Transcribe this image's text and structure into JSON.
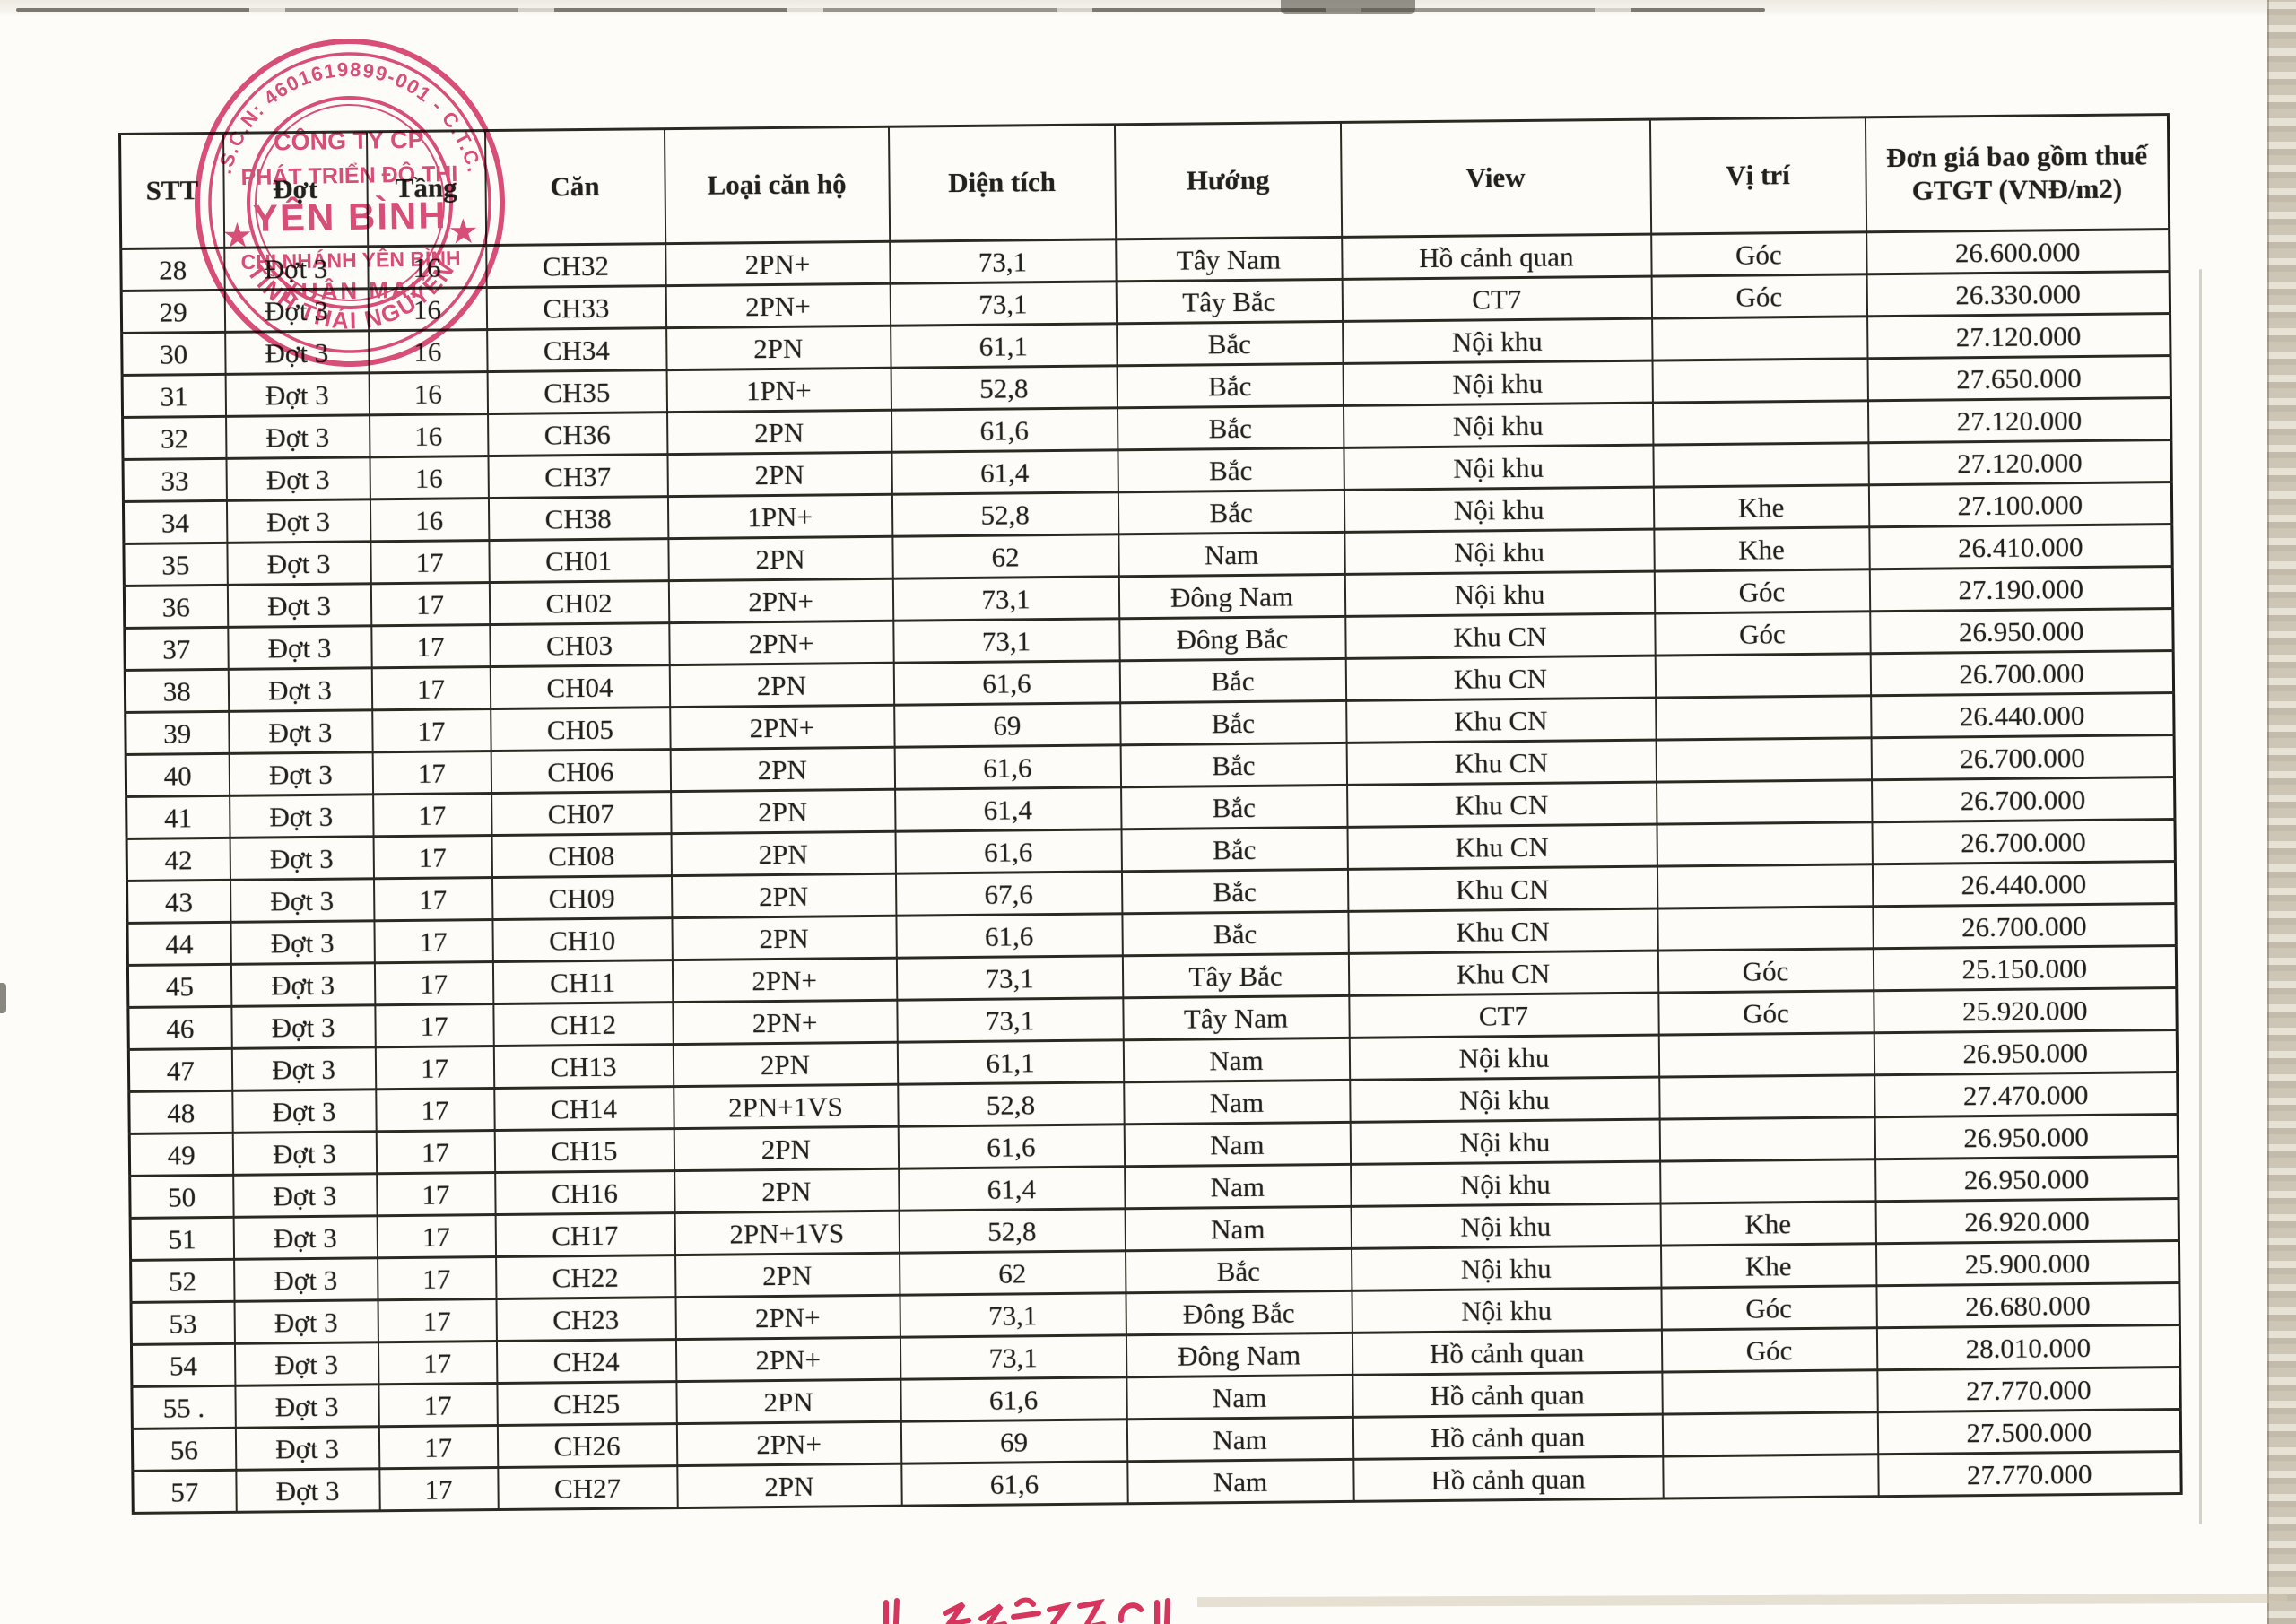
{
  "stamp": {
    "ring_text_top": "M.S.C.N: 4601619899-001 - C.T.C.P",
    "ring_text_bottom": "TỈNH THÁI NGUYÊN",
    "line1": "CÔNG TY CP",
    "line2": "PHÁT TRIỂN ĐÔ THỊ",
    "line3": "YÊN BÌNH",
    "line4": "CHI NHÁNH YÊN BÌNH",
    "line5": "XUÂN MAI",
    "star": "★",
    "color": "#d6416d"
  },
  "table": {
    "field_names": [
      "stt",
      "dot",
      "tang",
      "can",
      "loai-can-ho",
      "dien-tich",
      "huong",
      "view",
      "vi-tri",
      "don-gia"
    ],
    "headers": [
      "STT",
      "Đợt",
      "Tầng",
      "Căn",
      "Loại căn hộ",
      "Diện tích",
      "Hướng",
      "View",
      "Vị trí",
      "Đơn giá bao gồm thuế GTGT (VNĐ/m2)"
    ],
    "rows": [
      [
        "28",
        "Đợt 3",
        "16",
        "CH32",
        "2PN+",
        "73,1",
        "Tây Nam",
        "Hồ cảnh quan",
        "Góc",
        "26.600.000"
      ],
      [
        "29",
        "Đợt 3",
        "16",
        "CH33",
        "2PN+",
        "73,1",
        "Tây Bắc",
        "CT7",
        "Góc",
        "26.330.000"
      ],
      [
        "30",
        "Đợt 3",
        "16",
        "CH34",
        "2PN",
        "61,1",
        "Bắc",
        "Nội khu",
        "",
        "27.120.000"
      ],
      [
        "31",
        "Đợt 3",
        "16",
        "CH35",
        "1PN+",
        "52,8",
        "Bắc",
        "Nội khu",
        "",
        "27.650.000"
      ],
      [
        "32",
        "Đợt 3",
        "16",
        "CH36",
        "2PN",
        "61,6",
        "Bắc",
        "Nội khu",
        "",
        "27.120.000"
      ],
      [
        "33",
        "Đợt 3",
        "16",
        "CH37",
        "2PN",
        "61,4",
        "Bắc",
        "Nội khu",
        "",
        "27.120.000"
      ],
      [
        "34",
        "Đợt 3",
        "16",
        "CH38",
        "1PN+",
        "52,8",
        "Bắc",
        "Nội khu",
        "Khe",
        "27.100.000"
      ],
      [
        "35",
        "Đợt 3",
        "17",
        "CH01",
        "2PN",
        "62",
        "Nam",
        "Nội khu",
        "Khe",
        "26.410.000"
      ],
      [
        "36",
        "Đợt 3",
        "17",
        "CH02",
        "2PN+",
        "73,1",
        "Đông Nam",
        "Nội khu",
        "Góc",
        "27.190.000"
      ],
      [
        "37",
        "Đợt 3",
        "17",
        "CH03",
        "2PN+",
        "73,1",
        "Đông Bắc",
        "Khu CN",
        "Góc",
        "26.950.000"
      ],
      [
        "38",
        "Đợt 3",
        "17",
        "CH04",
        "2PN",
        "61,6",
        "Bắc",
        "Khu CN",
        "",
        "26.700.000"
      ],
      [
        "39",
        "Đợt 3",
        "17",
        "CH05",
        "2PN+",
        "69",
        "Bắc",
        "Khu CN",
        "",
        "26.440.000"
      ],
      [
        "40",
        "Đợt 3",
        "17",
        "CH06",
        "2PN",
        "61,6",
        "Bắc",
        "Khu CN",
        "",
        "26.700.000"
      ],
      [
        "41",
        "Đợt 3",
        "17",
        "CH07",
        "2PN",
        "61,4",
        "Bắc",
        "Khu CN",
        "",
        "26.700.000"
      ],
      [
        "42",
        "Đợt 3",
        "17",
        "CH08",
        "2PN",
        "61,6",
        "Bắc",
        "Khu CN",
        "",
        "26.700.000"
      ],
      [
        "43",
        "Đợt 3",
        "17",
        "CH09",
        "2PN",
        "67,6",
        "Bắc",
        "Khu CN",
        "",
        "26.440.000"
      ],
      [
        "44",
        "Đợt 3",
        "17",
        "CH10",
        "2PN",
        "61,6",
        "Bắc",
        "Khu CN",
        "",
        "26.700.000"
      ],
      [
        "45",
        "Đợt 3",
        "17",
        "CH11",
        "2PN+",
        "73,1",
        "Tây Bắc",
        "Khu CN",
        "Góc",
        "25.150.000"
      ],
      [
        "46",
        "Đợt 3",
        "17",
        "CH12",
        "2PN+",
        "73,1",
        "Tây Nam",
        "CT7",
        "Góc",
        "25.920.000"
      ],
      [
        "47",
        "Đợt 3",
        "17",
        "CH13",
        "2PN",
        "61,1",
        "Nam",
        "Nội khu",
        "",
        "26.950.000"
      ],
      [
        "48",
        "Đợt 3",
        "17",
        "CH14",
        "2PN+1VS",
        "52,8",
        "Nam",
        "Nội khu",
        "",
        "27.470.000"
      ],
      [
        "49",
        "Đợt 3",
        "17",
        "CH15",
        "2PN",
        "61,6",
        "Nam",
        "Nội khu",
        "",
        "26.950.000"
      ],
      [
        "50",
        "Đợt 3",
        "17",
        "CH16",
        "2PN",
        "61,4",
        "Nam",
        "Nội khu",
        "",
        "26.950.000"
      ],
      [
        "51",
        "Đợt 3",
        "17",
        "CH17",
        "2PN+1VS",
        "52,8",
        "Nam",
        "Nội khu",
        "Khe",
        "26.920.000"
      ],
      [
        "52",
        "Đợt 3",
        "17",
        "CH22",
        "2PN",
        "62",
        "Bắc",
        "Nội khu",
        "Khe",
        "25.900.000"
      ],
      [
        "53",
        "Đợt 3",
        "17",
        "CH23",
        "2PN+",
        "73,1",
        "Đông Bắc",
        "Nội khu",
        "Góc",
        "26.680.000"
      ],
      [
        "54",
        "Đợt 3",
        "17",
        "CH24",
        "2PN+",
        "73,1",
        "Đông Nam",
        "Hồ cảnh quan",
        "Góc",
        "28.010.000"
      ],
      [
        "55 .",
        "Đợt 3",
        "17",
        "CH25",
        "2PN",
        "61,6",
        "Nam",
        "Hồ cảnh quan",
        "",
        "27.770.000"
      ],
      [
        "56",
        "Đợt 3",
        "17",
        "CH26",
        "2PN+",
        "69",
        "Nam",
        "Hồ cảnh quan",
        "",
        "27.500.000"
      ],
      [
        "57",
        "Đợt 3",
        "17",
        "CH27",
        "2PN",
        "61,6",
        "Nam",
        "Hồ cảnh quan",
        "",
        "27.770.000"
      ]
    ]
  }
}
